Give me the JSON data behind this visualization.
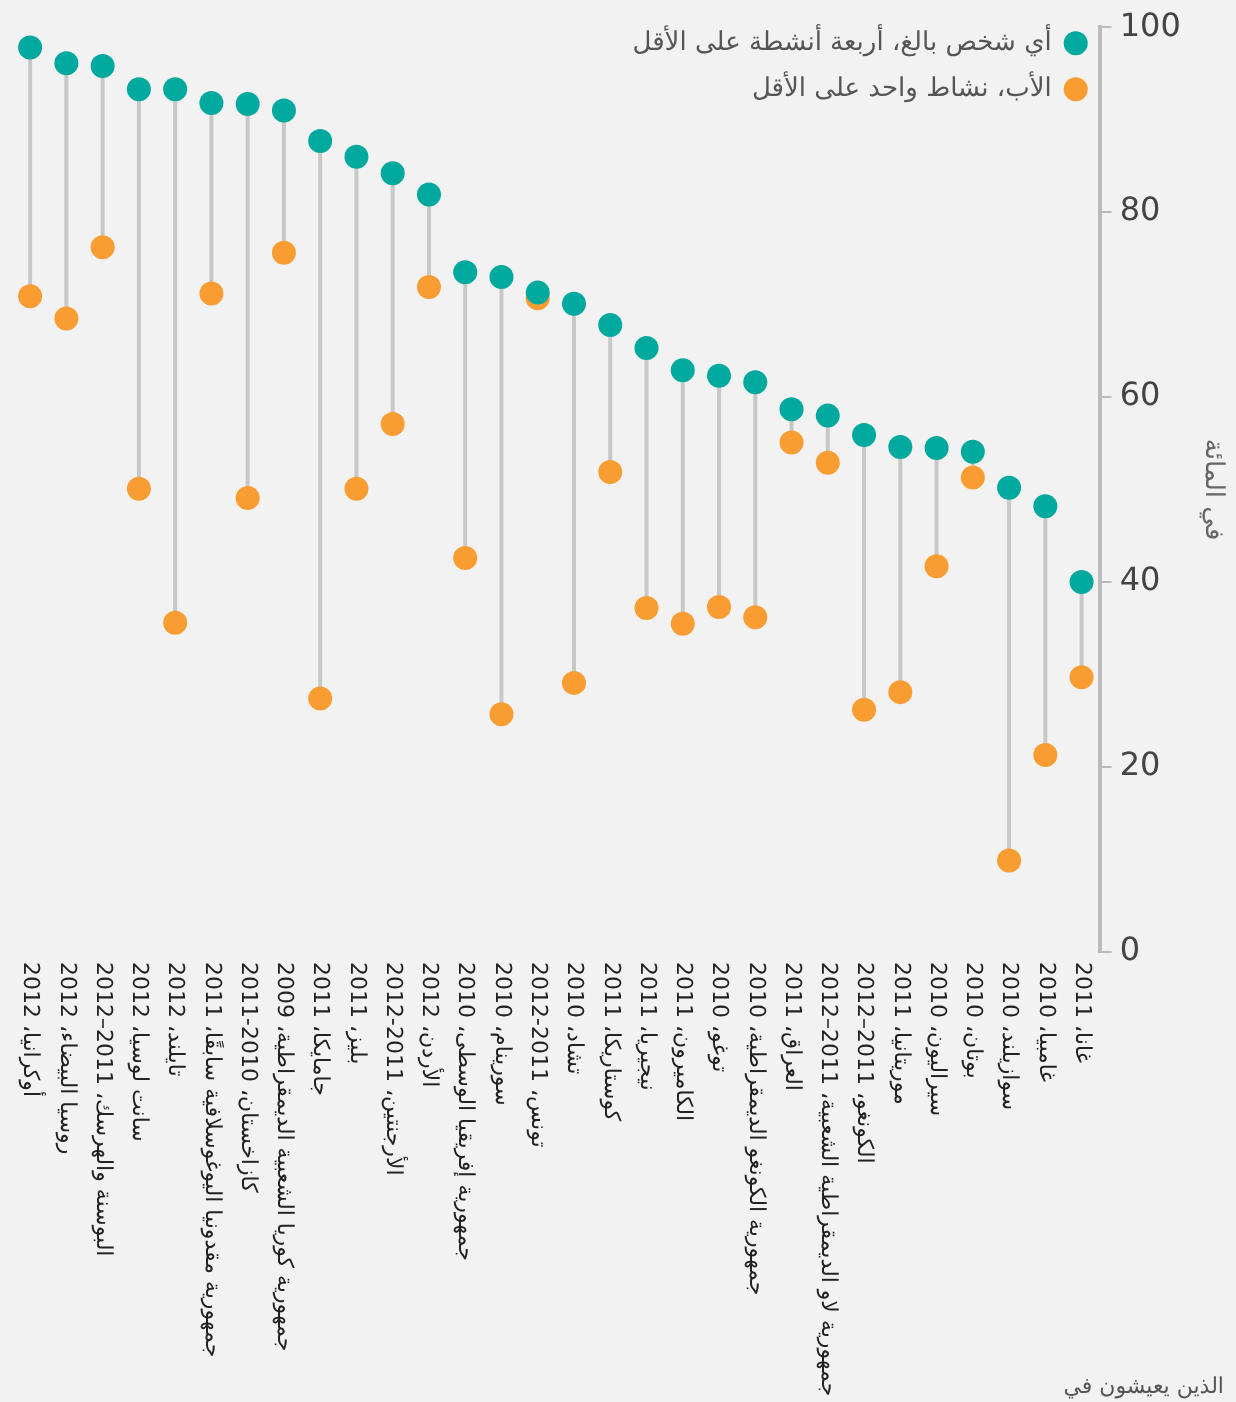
{
  "chart_data": {
    "type": "scatter",
    "ylabel": "في المائة",
    "xlabel": "الذين يعيشون في",
    "categories": [
      "أوكرانيا، 2012",
      "روسيا البيضاء، 2012",
      "البوسنة والهرسك، 2011–2012",
      "سانت لوسيا، 2012",
      "تايلند، 2012",
      "جمهورية مقدونيا اليوغوسلافية سابقًا، 2011",
      "كازاخستان، 2010-2011",
      "جمهورية كوريا الشعبية الديمقراطية، 2009",
      "جامايكا، 2011",
      "بليز، 2011",
      "الأرجنتين، 2011-2012",
      "الأردن، 2012",
      "جمهورية إفريقيا الوسطى، 2010",
      "سورينام، 2010",
      "تونس، 2011-2012",
      "تشاد، 2010",
      "كوستاريكا، 2011",
      "نيجيريا، 2011",
      "الكاميرون، 2011",
      "توغو، 2010",
      "جمهورية الكونغو الديمقراطية، 2010",
      "العراق، 2011",
      "جمهورية لاو الديمقراطية الشعبية، 2011–2012",
      "الكونغو، 2011–2012",
      "موريتانيا، 2011",
      "سيراليون، 2010",
      "بوتان، 2010",
      "سوازيلند، 2010",
      "غامبيا، 2010",
      "غانا، 2011"
    ],
    "series": [
      {
        "name": "أي شخص بالغ، أربعة أنشطة على الأقل",
        "color": "#00a99d",
        "values": [
          97.8,
          96.1,
          95.8,
          93.3,
          93.3,
          91.8,
          91.7,
          91.0,
          87.7,
          86.0,
          84.2,
          81.9,
          73.5,
          73.0,
          71.3,
          70.1,
          67.8,
          65.3,
          62.9,
          62.3,
          61.6,
          58.7,
          58.0,
          55.9,
          54.6,
          54.5,
          54.1,
          50.2,
          48.2,
          40.0
        ]
      },
      {
        "name": "الأب، نشاط واحد على الأقل",
        "color": "#f99d32",
        "values": [
          70.9,
          68.5,
          76.2,
          50.1,
          35.6,
          71.2,
          49.1,
          75.6,
          27.4,
          50.1,
          57.1,
          71.9,
          42.6,
          25.7,
          70.7,
          29.1,
          51.9,
          37.2,
          35.5,
          37.3,
          36.2,
          55.1,
          52.9,
          26.2,
          28.1,
          41.7,
          51.3,
          9.9,
          21.3,
          29.7
        ]
      }
    ],
    "ylim": [
      0,
      100
    ],
    "yticks": [
      0,
      20,
      40,
      60,
      80,
      100
    ],
    "grid": false,
    "legend": "top right",
    "marker": "circle"
  }
}
